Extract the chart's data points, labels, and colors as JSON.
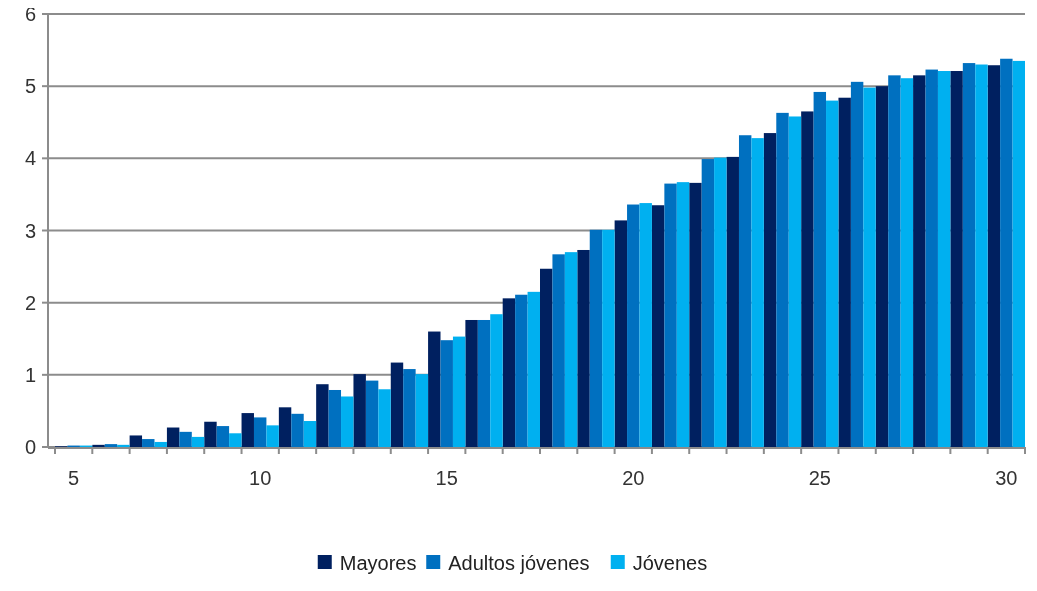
{
  "chart_data": {
    "type": "bar",
    "categories": [
      "5",
      null,
      null,
      null,
      null,
      "10",
      null,
      null,
      null,
      null,
      "15",
      null,
      null,
      null,
      null,
      "20",
      null,
      null,
      null,
      null,
      "25",
      null,
      null,
      null,
      null,
      "30"
    ],
    "series": [
      {
        "name": "Mayores",
        "color": "#002060",
        "values": [
          0.01,
          0.03,
          0.16,
          0.27,
          0.35,
          0.47,
          0.55,
          0.87,
          1.01,
          1.17,
          1.6,
          1.76,
          2.06,
          2.47,
          2.73,
          3.14,
          3.35,
          3.66,
          4.02,
          4.35,
          4.65,
          4.84,
          5.0,
          5.15,
          5.21,
          5.29
        ]
      },
      {
        "name": "Adultos jóvenes",
        "color": "#0070c0",
        "values": [
          0.02,
          0.04,
          0.11,
          0.21,
          0.29,
          0.41,
          0.46,
          0.79,
          0.92,
          1.08,
          1.48,
          1.76,
          2.11,
          2.67,
          3.01,
          3.36,
          3.65,
          3.99,
          4.32,
          4.63,
          4.92,
          5.06,
          5.15,
          5.23,
          5.32,
          5.38
        ]
      },
      {
        "name": "Jóvenes",
        "color": "#00b0f0",
        "values": [
          0.02,
          0.03,
          0.07,
          0.14,
          0.19,
          0.3,
          0.36,
          0.7,
          0.8,
          1.01,
          1.53,
          1.84,
          2.15,
          2.7,
          3.01,
          3.38,
          3.67,
          4.01,
          4.28,
          4.58,
          4.8,
          4.98,
          5.11,
          5.21,
          5.3,
          5.35
        ]
      }
    ],
    "ylim": [
      0,
      6
    ],
    "yticks": [
      0,
      1,
      2,
      3,
      4,
      5,
      6
    ],
    "grid": "y",
    "legend": "bottom"
  }
}
